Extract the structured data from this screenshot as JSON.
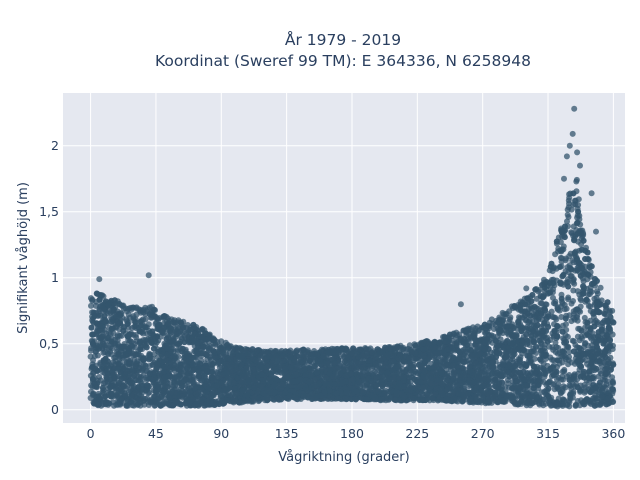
{
  "chart_data": {
    "type": "scatter",
    "title_line1": "År 1979 - 2019",
    "title_line2": "Koordinat (Sweref 99 TM): E 364336, N 6258948",
    "xlabel": "Vågriktning (grader)",
    "ylabel": "Signifikant våghöjd (m)",
    "xlim": [
      -19,
      368
    ],
    "ylim": [
      -0.1,
      2.4
    ],
    "xticks": [
      0,
      45,
      90,
      135,
      180,
      225,
      270,
      315,
      360
    ],
    "xtick_labels": [
      "0",
      "45",
      "90",
      "135",
      "180",
      "225",
      "270",
      "315",
      "360"
    ],
    "yticks": [
      0,
      0.5,
      1,
      1.5,
      2
    ],
    "ytick_labels": [
      "0",
      "0,5",
      "1",
      "1,5",
      "2"
    ],
    "grid": true,
    "marker_color": "#34566e",
    "plot_bg": "#e5e8f0",
    "envelope": {
      "x": [
        0,
        5,
        10,
        20,
        30,
        40,
        50,
        60,
        70,
        80,
        90,
        100,
        120,
        135,
        150,
        180,
        200,
        225,
        240,
        255,
        270,
        285,
        300,
        310,
        318,
        325,
        330,
        335,
        340,
        345,
        350,
        355,
        360
      ],
      "lower": [
        0.05,
        0.03,
        0.03,
        0.03,
        0.03,
        0.03,
        0.03,
        0.03,
        0.03,
        0.03,
        0.04,
        0.05,
        0.07,
        0.08,
        0.08,
        0.08,
        0.07,
        0.07,
        0.07,
        0.06,
        0.05,
        0.05,
        0.03,
        0.03,
        0.03,
        0.02,
        0.02,
        0.02,
        0.03,
        0.03,
        0.03,
        0.04,
        0.05
      ],
      "upper": [
        0.85,
        0.9,
        0.85,
        0.82,
        0.78,
        0.8,
        0.72,
        0.68,
        0.65,
        0.6,
        0.52,
        0.48,
        0.45,
        0.45,
        0.46,
        0.47,
        0.47,
        0.5,
        0.55,
        0.6,
        0.65,
        0.75,
        0.85,
        0.95,
        1.15,
        1.45,
        1.7,
        1.75,
        1.3,
        1.1,
        0.95,
        0.85,
        0.75
      ]
    },
    "notable_points": [
      {
        "x": 6,
        "y": 0.99
      },
      {
        "x": 40,
        "y": 1.02
      },
      {
        "x": 255,
        "y": 0.8
      },
      {
        "x": 300,
        "y": 0.92
      },
      {
        "x": 326,
        "y": 1.75
      },
      {
        "x": 328,
        "y": 1.92
      },
      {
        "x": 330,
        "y": 2.0
      },
      {
        "x": 332,
        "y": 2.09
      },
      {
        "x": 333,
        "y": 2.28
      },
      {
        "x": 335,
        "y": 1.95
      },
      {
        "x": 337,
        "y": 1.85
      },
      {
        "x": 345,
        "y": 1.64
      },
      {
        "x": 348,
        "y": 1.35
      }
    ]
  }
}
